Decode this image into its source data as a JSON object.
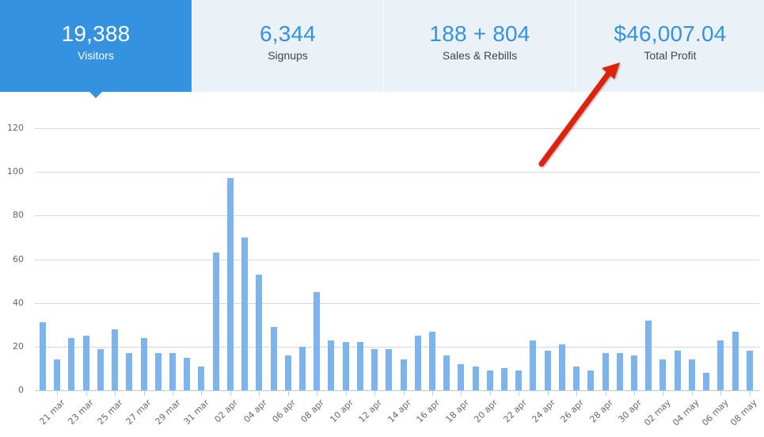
{
  "stats": [
    {
      "value": "19,388",
      "label": "Visitors",
      "active": true
    },
    {
      "value": "6,344",
      "label": "Signups",
      "active": false
    },
    {
      "value": "188 + 804",
      "label": "Sales & Rebills",
      "active": false
    },
    {
      "value": "$46,007.04",
      "label": "Total Profit",
      "active": false
    }
  ],
  "colors": {
    "accent": "#3592e0",
    "tile_bg": "#ebf2f7",
    "bar": "#7db4eb",
    "arrow": "#dd2211"
  },
  "annotation": {
    "type": "arrow",
    "points_to": "Total Profit"
  },
  "chart_data": {
    "type": "bar",
    "title": "",
    "xlabel": "",
    "ylabel": "",
    "ylim": [
      0,
      120
    ],
    "yticks": [
      0,
      20,
      40,
      60,
      80,
      100,
      120
    ],
    "grid": true,
    "legend": null,
    "categories": [
      "20 mar",
      "21 mar",
      "22 mar",
      "23 mar",
      "24 mar",
      "25 mar",
      "26 mar",
      "27 mar",
      "28 mar",
      "29 mar",
      "30 mar",
      "31 mar",
      "01 apr",
      "02 apr",
      "03 apr",
      "04 apr",
      "05 apr",
      "06 apr",
      "07 apr",
      "08 apr",
      "09 apr",
      "10 apr",
      "11 apr",
      "12 apr",
      "13 apr",
      "14 apr",
      "15 apr",
      "16 apr",
      "17 apr",
      "18 apr",
      "19 apr",
      "20 apr",
      "21 apr",
      "22 apr",
      "23 apr",
      "24 apr",
      "25 apr",
      "26 apr",
      "27 apr",
      "28 apr",
      "29 apr",
      "30 apr",
      "01 may",
      "02 may",
      "03 may",
      "04 may",
      "05 may",
      "06 may",
      "07 may",
      "08 may"
    ],
    "x_tick_labels": [
      "21 mar",
      "23 mar",
      "25 mar",
      "27 mar",
      "29 mar",
      "31 mar",
      "02 apr",
      "04 apr",
      "06 apr",
      "08 apr",
      "10 apr",
      "12 apr",
      "14 apr",
      "16 apr",
      "18 apr",
      "20 apr",
      "22 apr",
      "24 apr",
      "26 apr",
      "28 apr",
      "30 apr",
      "02 may",
      "04 may",
      "06 may",
      "08 may"
    ],
    "values": [
      31,
      14,
      24,
      25,
      19,
      28,
      17,
      24,
      17,
      17,
      15,
      11,
      63,
      97,
      70,
      53,
      29,
      16,
      20,
      45,
      23,
      22,
      22,
      19,
      19,
      14,
      25,
      27,
      16,
      12,
      11,
      9,
      10,
      9,
      23,
      18,
      21,
      11,
      9,
      17,
      17,
      16,
      32,
      14,
      18,
      14,
      8,
      23,
      27,
      18
    ]
  }
}
